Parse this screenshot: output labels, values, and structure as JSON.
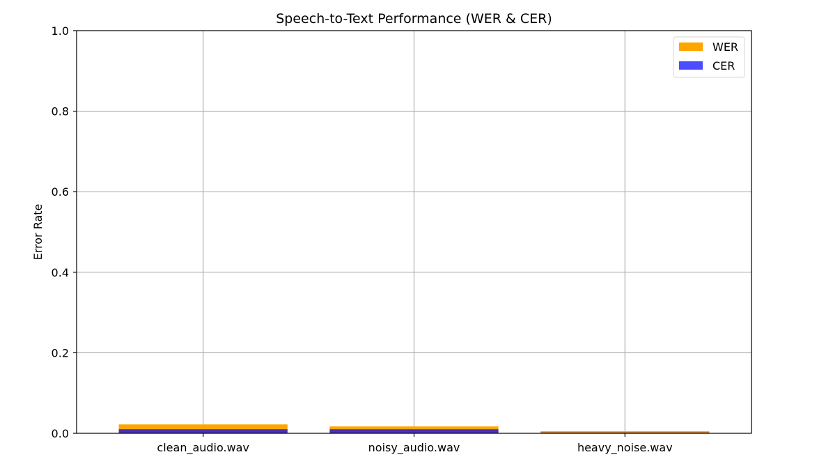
{
  "chart_data": {
    "type": "bar",
    "title": "Speech-to-Text Performance (WER & CER)",
    "xlabel": "",
    "ylabel": "Error Rate",
    "categories": [
      "clean_audio.wav",
      "noisy_audio.wav",
      "heavy_noise.wav"
    ],
    "series": [
      {
        "name": "WER",
        "color": "#ffa500",
        "values": [
          0.022,
          0.017,
          0.005
        ]
      },
      {
        "name": "CER",
        "color": "#0000ff",
        "opacity": 0.7,
        "values": [
          0.01,
          0.01,
          0.002
        ]
      }
    ],
    "ylim": [
      0,
      1.0
    ],
    "yticks": [
      "0.0",
      "0.2",
      "0.4",
      "0.6",
      "0.8",
      "1.0"
    ],
    "grid": true,
    "legend_position": "top-right"
  }
}
